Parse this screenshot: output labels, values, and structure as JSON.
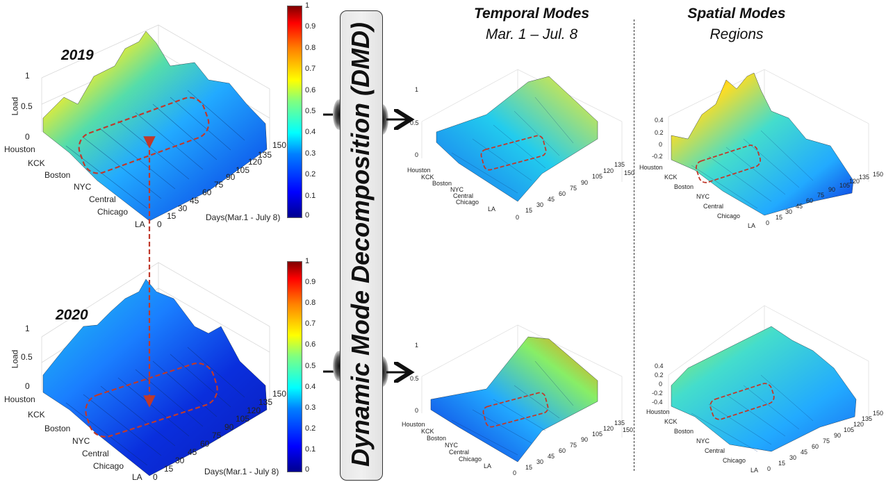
{
  "panel_2019": {
    "year": "2019",
    "axis_z": "Load",
    "z_ticks": [
      "1",
      "0.5",
      "0"
    ],
    "regions": [
      "Houston",
      "KCK",
      "Boston",
      "NYC",
      "Central",
      "Chicago",
      "LA"
    ],
    "x_label": "Days(Mar.1 - July 8)",
    "days": [
      "0",
      "15",
      "30",
      "45",
      "60",
      "75",
      "90",
      "105",
      "120",
      "135",
      "150"
    ]
  },
  "panel_2020": {
    "year": "2020",
    "axis_z": "Load",
    "z_ticks": [
      "1",
      "0.5",
      "0"
    ],
    "regions": [
      "Houston",
      "KCK",
      "Boston",
      "NYC",
      "Central",
      "Chicago",
      "LA"
    ],
    "x_label": "Days(Mar.1 - July 8)",
    "days": [
      "0",
      "15",
      "30",
      "45",
      "60",
      "75",
      "90",
      "105",
      "120",
      "135",
      "150"
    ]
  },
  "colorbar_ticks": [
    "1",
    "0.9",
    "0.8",
    "0.7",
    "0.6",
    "0.5",
    "0.4",
    "0.3",
    "0.2",
    "0.1",
    "0"
  ],
  "dmd_label": "Dynamic Mode Decomposition (DMD)",
  "temporal": {
    "title": "Temporal Modes",
    "subtitle": "Mar. 1 – Jul. 8",
    "z_ticks": [
      "1",
      "0.5",
      "0"
    ],
    "regions": [
      "Houston",
      "KCK",
      "Boston",
      "NYC",
      "Central",
      "Chicago",
      "LA"
    ],
    "days_top": [
      "0",
      "15",
      "30",
      "45",
      "60",
      "75",
      "90",
      "105",
      "120",
      "135",
      "150"
    ],
    "days_bottom": [
      "0",
      "15",
      "30",
      "45",
      "60",
      "75",
      "90",
      "105",
      "120",
      "135",
      "150"
    ]
  },
  "spatial": {
    "title": "Spatial Modes",
    "subtitle": "Regions",
    "z_ticks_top": [
      "0.4",
      "0.2",
      "0",
      "-0.2"
    ],
    "z_ticks_bottom": [
      "0.4",
      "0.2",
      "0",
      "-0.2",
      "-0.4"
    ],
    "regions": [
      "Houston",
      "KCK",
      "Boston",
      "NYC",
      "Central",
      "Chicago",
      "LA"
    ],
    "days": [
      "0",
      "15",
      "30",
      "45",
      "60",
      "75",
      "90",
      "105",
      "120",
      "135",
      "150"
    ]
  },
  "colors": {
    "highlight": "#c0392b",
    "arrow": "#111111"
  }
}
